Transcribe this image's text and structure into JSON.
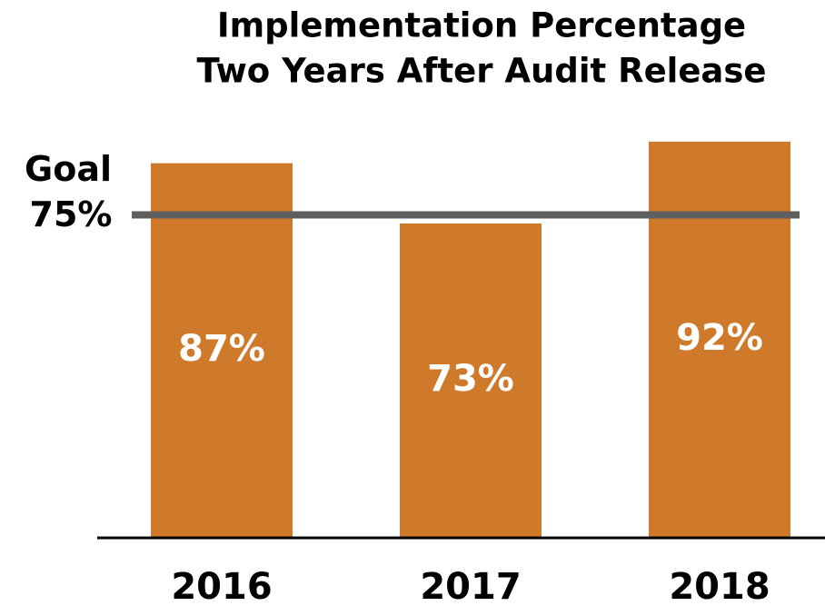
{
  "chart_data": {
    "type": "bar",
    "title": [
      "Implementation Percentage",
      "Two Years After Audit Release"
    ],
    "categories": [
      "2016",
      "2017",
      "2018"
    ],
    "values": [
      87,
      73,
      92
    ],
    "value_labels": [
      "87%",
      "73%",
      "92%"
    ],
    "color": "#cf7a2b",
    "ylim": [
      0,
      100
    ],
    "goal": {
      "label": "Goal",
      "value": 75,
      "value_label": "75%",
      "color": "#5f5f5f"
    }
  }
}
